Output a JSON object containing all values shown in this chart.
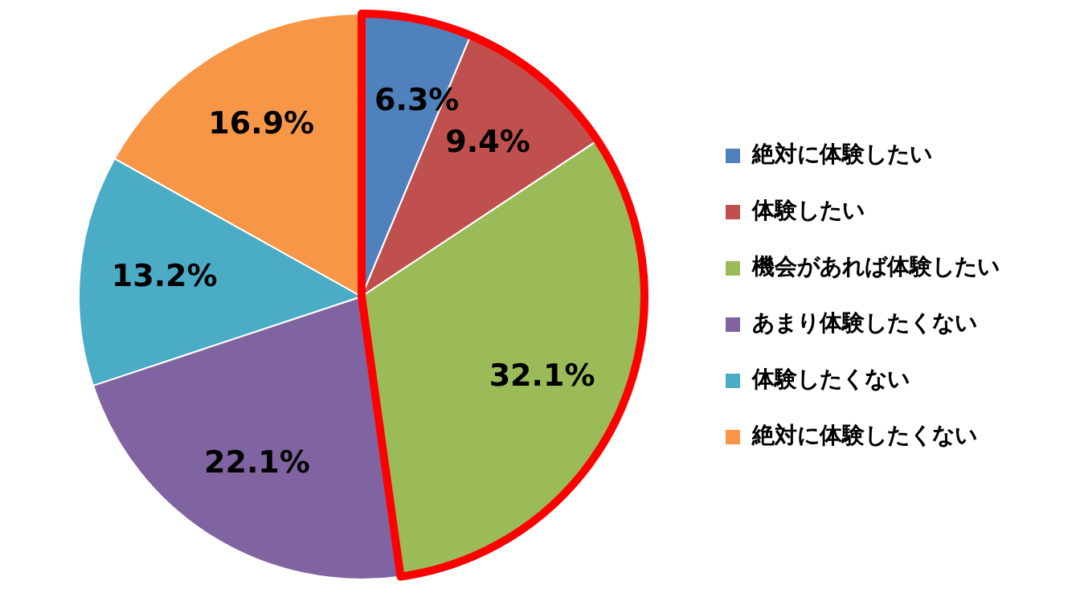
{
  "chart_data": {
    "type": "pie",
    "categories": [
      "絶対に体験したい",
      "体験したい",
      "機会があれば体験したい",
      "あまり体験したくない",
      "体験したくない",
      "絶対に体験したくない"
    ],
    "values": [
      6.3,
      9.4,
      32.1,
      22.1,
      13.2,
      16.9
    ],
    "colors": [
      "#4f81bd",
      "#c0504d",
      "#9bbb59",
      "#8064a2",
      "#4bacc6",
      "#f79646"
    ],
    "value_labels": [
      "6.3%",
      "9.4%",
      "32.1%",
      "22.1%",
      "13.2%",
      "16.9%"
    ],
    "legend": "right"
  }
}
